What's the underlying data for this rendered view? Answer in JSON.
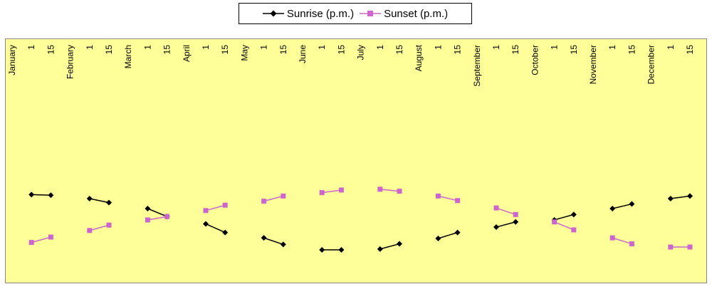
{
  "chart_data": {
    "type": "line",
    "x_labels": [
      "January",
      "1",
      "15",
      "February",
      "1",
      "15",
      "March",
      "1",
      "15",
      "April",
      "1",
      "15",
      "May",
      "1",
      "15",
      "June",
      "1",
      "15",
      "July",
      "1",
      "15",
      "August",
      "1",
      "15",
      "September",
      "1",
      "15",
      "October",
      "1",
      "15",
      "November",
      "1",
      "15",
      "December",
      "1",
      "15"
    ],
    "segments": [
      {
        "sunrise": [
          7.2,
          7.17
        ],
        "sunset": [
          4.8,
          5.07
        ]
      },
      {
        "sunrise": [
          7.0,
          6.8
        ],
        "sunset": [
          5.4,
          5.67
        ]
      },
      {
        "sunrise": [
          6.5,
          6.1
        ],
        "sunset": [
          5.93,
          6.1
        ]
      },
      {
        "sunrise": [
          5.73,
          5.3
        ],
        "sunset": [
          6.4,
          6.67
        ]
      },
      {
        "sunrise": [
          5.03,
          4.7
        ],
        "sunset": [
          6.87,
          7.13
        ]
      },
      {
        "sunrise": [
          4.43,
          4.43
        ],
        "sunset": [
          7.3,
          7.43
        ]
      },
      {
        "sunrise": [
          4.47,
          4.73
        ],
        "sunset": [
          7.47,
          7.37
        ]
      },
      {
        "sunrise": [
          5.0,
          5.3
        ],
        "sunset": [
          7.13,
          6.9
        ]
      },
      {
        "sunrise": [
          5.57,
          5.83
        ],
        "sunset": [
          6.53,
          6.2
        ]
      },
      {
        "sunrise": [
          5.93,
          6.2
        ],
        "sunset": [
          5.83,
          5.43
        ]
      },
      {
        "sunrise": [
          6.5,
          6.73
        ],
        "sunset": [
          5.03,
          4.73
        ]
      },
      {
        "sunrise": [
          7.0,
          7.13
        ],
        "sunset": [
          4.57,
          4.57
        ]
      }
    ],
    "series": [
      {
        "name": "Sunrise (p.m.)",
        "color": "#000000",
        "marker": "diamond"
      },
      {
        "name": "Sunset (p.m.)",
        "color": "#cc66cc",
        "marker": "square"
      }
    ],
    "ylim": [
      0,
      15
    ],
    "grid": false,
    "legend_position": "top-center"
  }
}
